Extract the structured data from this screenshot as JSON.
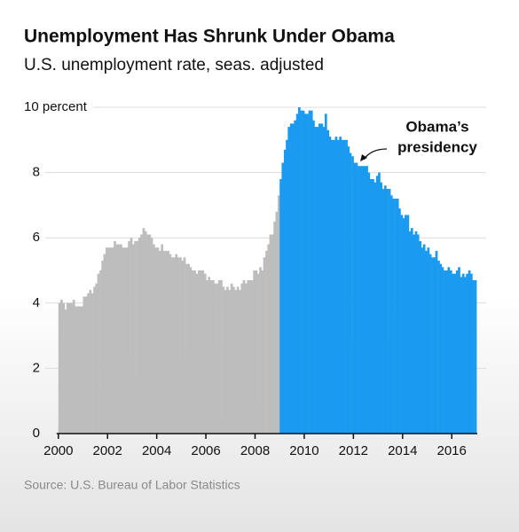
{
  "chart_data": {
    "type": "bar",
    "title": "Unemployment Has Shrunk Under Obama",
    "subtitle": "U.S. unemployment rate, seas. adjusted",
    "source": "Source: U.S. Bureau of Labor Statistics",
    "annotation": [
      "Obama’s",
      "presidency"
    ],
    "xlim": [
      1998.6,
      2017.4
    ],
    "xticks": [
      2000,
      2002,
      2004,
      2006,
      2008,
      2010,
      2012,
      2014,
      2016
    ],
    "ylim": [
      0,
      10
    ],
    "yticks": [
      0,
      2,
      4,
      6,
      8,
      {
        "value": 10,
        "label": "10 percent"
      }
    ],
    "grid": true,
    "series": [
      {
        "color": "#bdbdbd",
        "x": [
          2000,
          2000.08,
          2000.17,
          2000.25,
          2000.33,
          2000.42,
          2000.5,
          2000.58,
          2000.67,
          2000.75,
          2000.83,
          2000.92,
          2001,
          2001.08,
          2001.17,
          2001.25,
          2001.33,
          2001.42,
          2001.5,
          2001.58,
          2001.67,
          2001.75,
          2001.83,
          2001.92,
          2002,
          2002.08,
          2002.17,
          2002.25,
          2002.33,
          2002.42,
          2002.5,
          2002.58,
          2002.67,
          2002.75,
          2002.83,
          2002.92,
          2003,
          2003.08,
          2003.17,
          2003.25,
          2003.33,
          2003.42,
          2003.5,
          2003.58,
          2003.67,
          2003.75,
          2003.83,
          2003.92,
          2004,
          2004.08,
          2004.17,
          2004.25,
          2004.33,
          2004.42,
          2004.5,
          2004.58,
          2004.67,
          2004.75,
          2004.83,
          2004.92,
          2005,
          2005.08,
          2005.17,
          2005.25,
          2005.33,
          2005.42,
          2005.5,
          2005.58,
          2005.67,
          2005.75,
          2005.83,
          2005.92,
          2006,
          2006.08,
          2006.17,
          2006.25,
          2006.33,
          2006.42,
          2006.5,
          2006.58,
          2006.67,
          2006.75,
          2006.83,
          2006.92,
          2007,
          2007.08,
          2007.17,
          2007.25,
          2007.33,
          2007.42,
          2007.5,
          2007.58,
          2007.67,
          2007.75,
          2007.83,
          2007.92,
          2008,
          2008.08,
          2008.17,
          2008.25,
          2008.33,
          2008.42,
          2008.5,
          2008.58,
          2008.67,
          2008.75,
          2008.83,
          2008.92
        ],
        "values": [
          4.0,
          4.1,
          4.0,
          3.8,
          4.0,
          4.0,
          4.0,
          4.1,
          3.9,
          3.9,
          3.9,
          3.9,
          4.2,
          4.2,
          4.3,
          4.4,
          4.3,
          4.5,
          4.6,
          4.9,
          5.0,
          5.3,
          5.5,
          5.7,
          5.7,
          5.7,
          5.7,
          5.9,
          5.8,
          5.8,
          5.8,
          5.7,
          5.7,
          5.7,
          5.9,
          6.0,
          5.8,
          5.9,
          5.9,
          6.0,
          6.1,
          6.3,
          6.2,
          6.1,
          6.1,
          6.0,
          5.8,
          5.7,
          5.7,
          5.6,
          5.8,
          5.6,
          5.6,
          5.6,
          5.5,
          5.4,
          5.4,
          5.5,
          5.4,
          5.4,
          5.3,
          5.4,
          5.2,
          5.2,
          5.1,
          5.0,
          5.0,
          4.9,
          5.0,
          5.0,
          5.0,
          4.9,
          4.7,
          4.8,
          4.7,
          4.7,
          4.6,
          4.6,
          4.7,
          4.7,
          4.5,
          4.4,
          4.5,
          4.4,
          4.6,
          4.5,
          4.4,
          4.5,
          4.4,
          4.6,
          4.7,
          4.6,
          4.7,
          4.7,
          4.7,
          5.0,
          5.0,
          4.9,
          5.1,
          5.0,
          5.4,
          5.6,
          5.8,
          6.1,
          6.1,
          6.5,
          6.8,
          7.3
        ]
      },
      {
        "color": "#1a9af0",
        "x": [
          2009,
          2009.08,
          2009.17,
          2009.25,
          2009.33,
          2009.42,
          2009.5,
          2009.58,
          2009.67,
          2009.75,
          2009.83,
          2009.92,
          2010,
          2010.08,
          2010.17,
          2010.25,
          2010.33,
          2010.42,
          2010.5,
          2010.58,
          2010.67,
          2010.75,
          2010.83,
          2010.92,
          2011,
          2011.08,
          2011.17,
          2011.25,
          2011.33,
          2011.42,
          2011.5,
          2011.58,
          2011.67,
          2011.75,
          2011.83,
          2011.92,
          2012,
          2012.08,
          2012.17,
          2012.25,
          2012.33,
          2012.42,
          2012.5,
          2012.58,
          2012.67,
          2012.75,
          2012.83,
          2012.92,
          2013,
          2013.08,
          2013.17,
          2013.25,
          2013.33,
          2013.42,
          2013.5,
          2013.58,
          2013.67,
          2013.75,
          2013.83,
          2013.92,
          2014,
          2014.08,
          2014.17,
          2014.25,
          2014.33,
          2014.42,
          2014.5,
          2014.58,
          2014.67,
          2014.75,
          2014.83,
          2014.92,
          2015,
          2015.08,
          2015.17,
          2015.25,
          2015.33,
          2015.42,
          2015.5,
          2015.58,
          2015.67,
          2015.75,
          2015.83,
          2015.92,
          2016,
          2016.08,
          2016.17,
          2016.25,
          2016.33,
          2016.42,
          2016.5,
          2016.58,
          2016.67,
          2016.75,
          2016.83,
          2016.92
        ],
        "values": [
          7.8,
          8.3,
          8.7,
          9.0,
          9.4,
          9.5,
          9.5,
          9.6,
          9.8,
          10.0,
          9.9,
          9.9,
          9.8,
          9.8,
          9.9,
          9.9,
          9.6,
          9.4,
          9.4,
          9.5,
          9.5,
          9.4,
          9.8,
          9.3,
          9.1,
          9.0,
          9.0,
          9.1,
          9.0,
          9.1,
          9.0,
          9.0,
          9.0,
          8.8,
          8.6,
          8.5,
          8.3,
          8.3,
          8.2,
          8.2,
          8.2,
          8.2,
          8.2,
          8.0,
          7.8,
          7.8,
          7.7,
          7.9,
          8.0,
          7.7,
          7.5,
          7.6,
          7.5,
          7.5,
          7.3,
          7.2,
          7.2,
          7.2,
          6.9,
          6.7,
          6.6,
          6.7,
          6.7,
          6.2,
          6.3,
          6.1,
          6.2,
          6.1,
          5.9,
          5.7,
          5.8,
          5.6,
          5.7,
          5.5,
          5.4,
          5.4,
          5.6,
          5.3,
          5.2,
          5.1,
          5.0,
          5.0,
          5.1,
          5.0,
          4.9,
          4.9,
          5.0,
          5.1,
          4.8,
          4.9,
          4.8,
          4.9,
          5.0,
          4.9,
          4.7,
          4.7
        ]
      }
    ]
  }
}
